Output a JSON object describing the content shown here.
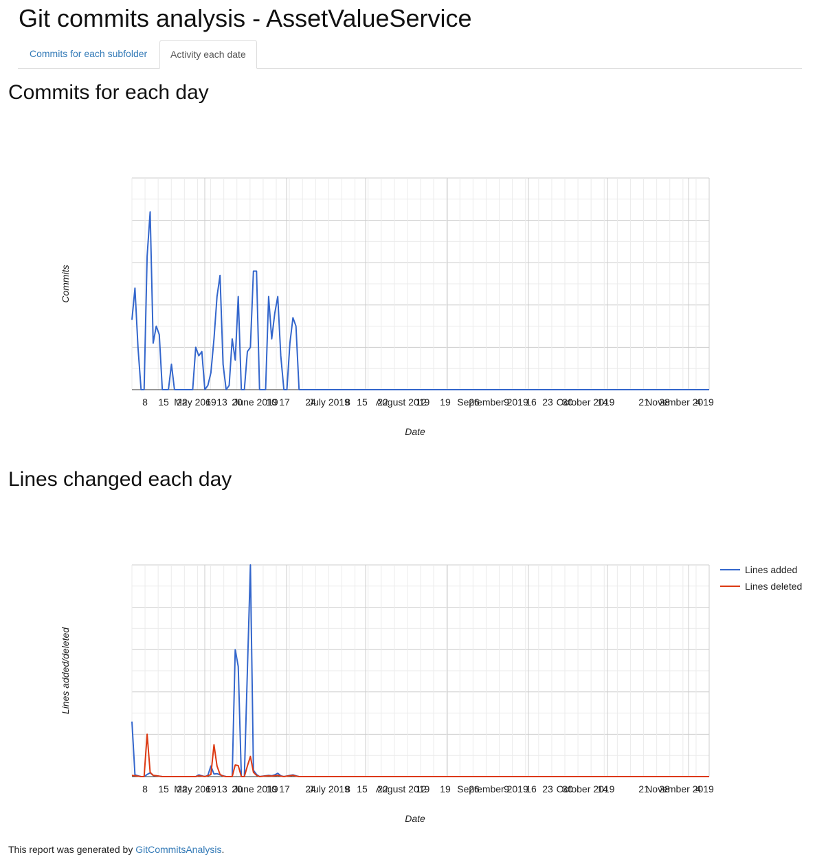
{
  "page": {
    "title": "Git commits analysis - AssetValueService"
  },
  "tabs": [
    {
      "label": "Commits for each subfolder",
      "active": false
    },
    {
      "label": "Activity each date",
      "active": true
    }
  ],
  "sections": {
    "commits_title": "Commits for each day",
    "lines_title": "Lines changed each day"
  },
  "footer": {
    "prefix": "This report was generated by ",
    "link_text": "GitCommitsAnalysis",
    "suffix": "."
  },
  "colors": {
    "added": "#3366cc",
    "deleted": "#dc3912",
    "link": "#337ab7"
  },
  "chart_data": [
    {
      "type": "line",
      "title": "",
      "xlabel": "Date",
      "ylabel": "Commits",
      "x_range": [
        "2019-05-03",
        "2019-11-09"
      ],
      "y_range": [
        0,
        10
      ],
      "grid": true,
      "legend": "none",
      "x_ticks": [
        "8",
        "15",
        "22",
        "May 2019",
        "6",
        "13",
        "20",
        "June 2019",
        "10",
        "17",
        "24",
        "July 2019",
        "8",
        "15",
        "22",
        "August 2019",
        "12",
        "19",
        "26",
        "September 2019",
        "9",
        "16",
        "23",
        "30",
        "October 2019",
        "14",
        "21",
        "28",
        "November 2019",
        "4"
      ],
      "series": [
        {
          "values": [
            [
              "2019-05-03",
              3.3
            ],
            [
              "2019-05-04",
              4.8
            ],
            [
              "2019-05-05",
              2
            ],
            [
              "2019-05-06",
              0
            ],
            [
              "2019-05-07",
              0
            ],
            [
              "2019-05-08",
              6.3
            ],
            [
              "2019-05-09",
              8.4
            ],
            [
              "2019-05-10",
              2.2
            ],
            [
              "2019-05-11",
              3
            ],
            [
              "2019-05-12",
              2.6
            ],
            [
              "2019-05-13",
              0
            ],
            [
              "2019-05-14",
              0
            ],
            [
              "2019-05-15",
              0
            ],
            [
              "2019-05-16",
              1.2
            ],
            [
              "2019-05-17",
              0
            ],
            [
              "2019-05-18",
              0
            ],
            [
              "2019-05-19",
              0
            ],
            [
              "2019-05-20",
              0
            ],
            [
              "2019-05-21",
              0
            ],
            [
              "2019-05-22",
              0
            ],
            [
              "2019-05-23",
              0
            ],
            [
              "2019-05-24",
              2
            ],
            [
              "2019-05-25",
              1.6
            ],
            [
              "2019-05-26",
              1.8
            ],
            [
              "2019-05-27",
              0
            ],
            [
              "2019-05-28",
              0.2
            ],
            [
              "2019-05-29",
              0.8
            ],
            [
              "2019-05-30",
              2.4
            ],
            [
              "2019-05-31",
              4.4
            ],
            [
              "2019-06-01",
              5.4
            ],
            [
              "2019-06-02",
              1.2
            ],
            [
              "2019-06-03",
              0
            ],
            [
              "2019-06-04",
              0.2
            ],
            [
              "2019-06-05",
              2.4
            ],
            [
              "2019-06-06",
              1.4
            ],
            [
              "2019-06-07",
              4.4
            ],
            [
              "2019-06-08",
              0
            ],
            [
              "2019-06-09",
              0
            ],
            [
              "2019-06-10",
              1.8
            ],
            [
              "2019-06-11",
              2
            ],
            [
              "2019-06-12",
              5.6
            ],
            [
              "2019-06-13",
              5.6
            ],
            [
              "2019-06-14",
              0
            ],
            [
              "2019-06-15",
              0
            ],
            [
              "2019-06-16",
              0
            ],
            [
              "2019-06-17",
              4.4
            ],
            [
              "2019-06-18",
              2.4
            ],
            [
              "2019-06-19",
              3.6
            ],
            [
              "2019-06-20",
              4.4
            ],
            [
              "2019-06-21",
              1.6
            ],
            [
              "2019-06-22",
              0
            ],
            [
              "2019-06-23",
              0
            ],
            [
              "2019-06-24",
              2.2
            ],
            [
              "2019-06-25",
              3.4
            ],
            [
              "2019-06-26",
              3
            ],
            [
              "2019-06-27",
              0
            ],
            [
              "2019-06-28",
              0
            ],
            [
              "2019-11-09",
              0
            ]
          ]
        }
      ]
    },
    {
      "type": "line",
      "title": "",
      "xlabel": "Date",
      "ylabel": "Lines added/deleted",
      "x_range": [
        "2019-05-03",
        "2019-11-09"
      ],
      "y_range": [
        0,
        1000
      ],
      "grid": true,
      "legend": "right",
      "x_ticks": [
        "8",
        "15",
        "22",
        "May 2019",
        "6",
        "13",
        "20",
        "June 2019",
        "10",
        "17",
        "24",
        "July 2019",
        "8",
        "15",
        "22",
        "August 2019",
        "12",
        "19",
        "26",
        "September 2019",
        "9",
        "16",
        "23",
        "30",
        "October 2019",
        "14",
        "21",
        "28",
        "November 2019",
        "4"
      ],
      "series": [
        {
          "name": "Lines added",
          "values": [
            [
              "2019-05-03",
              260
            ],
            [
              "2019-05-04",
              8
            ],
            [
              "2019-05-05",
              4
            ],
            [
              "2019-05-06",
              0
            ],
            [
              "2019-05-07",
              0
            ],
            [
              "2019-05-08",
              10
            ],
            [
              "2019-05-09",
              18
            ],
            [
              "2019-05-10",
              6
            ],
            [
              "2019-05-11",
              4
            ],
            [
              "2019-05-12",
              2
            ],
            [
              "2019-05-13",
              0
            ],
            [
              "2019-05-14",
              0
            ],
            [
              "2019-05-24",
              0
            ],
            [
              "2019-05-25",
              8
            ],
            [
              "2019-05-26",
              4
            ],
            [
              "2019-05-27",
              0
            ],
            [
              "2019-05-28",
              6
            ],
            [
              "2019-05-29",
              50
            ],
            [
              "2019-05-30",
              12
            ],
            [
              "2019-05-31",
              14
            ],
            [
              "2019-06-01",
              8
            ],
            [
              "2019-06-02",
              4
            ],
            [
              "2019-06-03",
              0
            ],
            [
              "2019-06-05",
              0
            ],
            [
              "2019-06-06",
              600
            ],
            [
              "2019-06-07",
              520
            ],
            [
              "2019-06-08",
              0
            ],
            [
              "2019-06-09",
              0
            ],
            [
              "2019-06-10",
              500
            ],
            [
              "2019-06-11",
              1000
            ],
            [
              "2019-06-12",
              30
            ],
            [
              "2019-06-13",
              10
            ],
            [
              "2019-06-14",
              0
            ],
            [
              "2019-06-17",
              6
            ],
            [
              "2019-06-18",
              4
            ],
            [
              "2019-06-19",
              8
            ],
            [
              "2019-06-20",
              16
            ],
            [
              "2019-06-21",
              4
            ],
            [
              "2019-06-22",
              0
            ],
            [
              "2019-06-24",
              6
            ],
            [
              "2019-06-25",
              8
            ],
            [
              "2019-06-26",
              4
            ],
            [
              "2019-06-27",
              0
            ],
            [
              "2019-11-09",
              0
            ]
          ]
        },
        {
          "name": "Lines deleted",
          "values": [
            [
              "2019-05-03",
              6
            ],
            [
              "2019-05-04",
              4
            ],
            [
              "2019-05-05",
              2
            ],
            [
              "2019-05-06",
              0
            ],
            [
              "2019-05-07",
              0
            ],
            [
              "2019-05-08",
              200
            ],
            [
              "2019-05-09",
              20
            ],
            [
              "2019-05-10",
              6
            ],
            [
              "2019-05-11",
              4
            ],
            [
              "2019-05-12",
              2
            ],
            [
              "2019-05-13",
              0
            ],
            [
              "2019-05-24",
              0
            ],
            [
              "2019-05-25",
              4
            ],
            [
              "2019-05-26",
              2
            ],
            [
              "2019-05-27",
              0
            ],
            [
              "2019-05-28",
              4
            ],
            [
              "2019-05-29",
              10
            ],
            [
              "2019-05-30",
              150
            ],
            [
              "2019-05-31",
              50
            ],
            [
              "2019-06-01",
              10
            ],
            [
              "2019-06-02",
              2
            ],
            [
              "2019-06-03",
              0
            ],
            [
              "2019-06-05",
              0
            ],
            [
              "2019-06-06",
              55
            ],
            [
              "2019-06-07",
              52
            ],
            [
              "2019-06-08",
              0
            ],
            [
              "2019-06-09",
              0
            ],
            [
              "2019-06-10",
              50
            ],
            [
              "2019-06-11",
              95
            ],
            [
              "2019-06-12",
              20
            ],
            [
              "2019-06-13",
              6
            ],
            [
              "2019-06-14",
              0
            ],
            [
              "2019-06-17",
              4
            ],
            [
              "2019-06-18",
              2
            ],
            [
              "2019-06-19",
              4
            ],
            [
              "2019-06-20",
              6
            ],
            [
              "2019-06-21",
              2
            ],
            [
              "2019-06-22",
              0
            ],
            [
              "2019-06-24",
              4
            ],
            [
              "2019-06-25",
              6
            ],
            [
              "2019-06-26",
              2
            ],
            [
              "2019-06-27",
              0
            ],
            [
              "2019-11-09",
              0
            ]
          ]
        }
      ]
    }
  ]
}
